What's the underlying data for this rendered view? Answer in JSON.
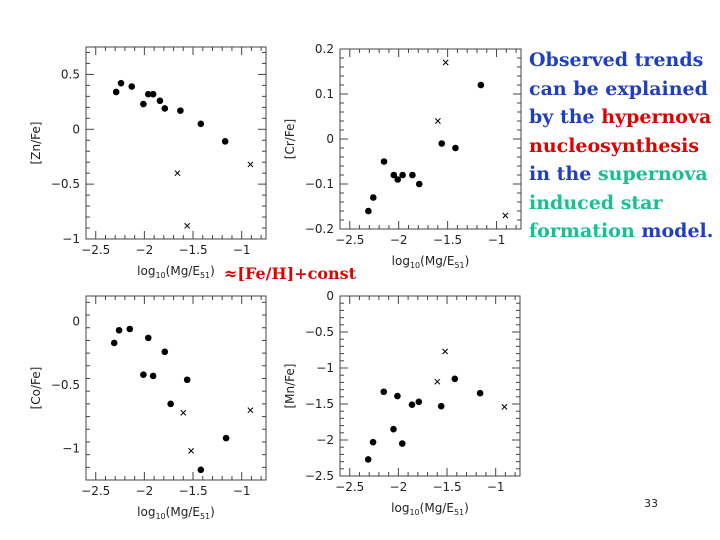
{
  "colors": {
    "blue": "#1f3fc0",
    "red": "#e00000",
    "teal": "#1abf8f",
    "ink": "#000000"
  },
  "side_text": {
    "lines": [
      [
        {
          "text": "Observed trends",
          "color": "blue"
        }
      ],
      [
        {
          "text": "can be explained",
          "color": "blue"
        }
      ],
      [
        {
          "text": "by the ",
          "color": "blue"
        },
        {
          "text": "hypernova",
          "color": "red"
        }
      ],
      [
        {
          "text": "nucleosynthesis",
          "color": "red"
        }
      ],
      [
        {
          "text": "in the ",
          "color": "blue"
        },
        {
          "text": "supernova",
          "color": "teal"
        }
      ],
      [
        {
          "text": "induced star",
          "color": "teal"
        }
      ],
      [
        {
          "text": "formation",
          "color": "teal"
        },
        {
          "text": " model.",
          "color": "blue"
        }
      ]
    ]
  },
  "note": "≈[Fe/H]+const",
  "page_number": "33",
  "chart_data": [
    {
      "type": "scatter",
      "ylabel": "[Zn/Fe]",
      "xlabel_main": "log",
      "xlabel_sub": "10",
      "xlabel_paren": "(Mg/E",
      "xlabel_paren_sub": "51",
      "xlabel_close": ")",
      "xlim": [
        -2.6,
        -0.75
      ],
      "ylim": [
        -1,
        0.75
      ],
      "xticks": [
        -2.5,
        -2,
        -1.5,
        -1
      ],
      "xtick_labels": [
        "−2.5",
        "−2",
        "−1.5",
        "−1"
      ],
      "yticks": [
        -1,
        -0.5,
        0,
        0.5
      ],
      "ytick_labels": [
        "−1",
        "−0.5",
        "0",
        "0.5"
      ],
      "series": [
        {
          "marker": "dot",
          "points": [
            [
              -2.29,
              0.34
            ],
            [
              -2.24,
              0.42
            ],
            [
              -2.13,
              0.39
            ],
            [
              -2.01,
              0.23
            ],
            [
              -1.96,
              0.32
            ],
            [
              -1.91,
              0.32
            ],
            [
              -1.84,
              0.26
            ],
            [
              -1.79,
              0.19
            ],
            [
              -1.63,
              0.17
            ],
            [
              -1.42,
              0.05
            ],
            [
              -1.17,
              -0.11
            ]
          ]
        },
        {
          "marker": "cross",
          "points": [
            [
              -1.66,
              -0.4
            ],
            [
              -1.56,
              -0.88
            ],
            [
              -0.91,
              -0.32
            ]
          ]
        }
      ]
    },
    {
      "type": "scatter",
      "ylabel": "[Cr/Fe]",
      "xlabel_main": "log",
      "xlabel_sub": "10",
      "xlabel_paren": "(Mg/E",
      "xlabel_paren_sub": "51",
      "xlabel_close": ")",
      "xlim": [
        -2.6,
        -0.75
      ],
      "ylim": [
        -0.2,
        0.2
      ],
      "xticks": [
        -2.5,
        -2,
        -1.5,
        -1
      ],
      "xtick_labels": [
        "−2.5",
        "−2",
        "−1.5",
        "−1"
      ],
      "yticks": [
        -0.2,
        -0.1,
        0,
        0.1,
        0.2
      ],
      "ytick_labels": [
        "−0.2",
        "−0.1",
        "0",
        "0.1",
        "0.2"
      ],
      "series": [
        {
          "marker": "dot",
          "points": [
            [
              -2.31,
              -0.16
            ],
            [
              -2.26,
              -0.13
            ],
            [
              -2.15,
              -0.05
            ],
            [
              -2.05,
              -0.08
            ],
            [
              -2.01,
              -0.09
            ],
            [
              -1.96,
              -0.08
            ],
            [
              -1.86,
              -0.08
            ],
            [
              -1.79,
              -0.1
            ],
            [
              -1.56,
              -0.01
            ],
            [
              -1.42,
              -0.02
            ],
            [
              -1.16,
              0.12
            ]
          ]
        },
        {
          "marker": "cross",
          "points": [
            [
              -1.6,
              0.04
            ],
            [
              -1.52,
              0.17
            ],
            [
              -0.91,
              -0.17
            ]
          ]
        }
      ]
    },
    {
      "type": "scatter",
      "ylabel": "[Co/Fe]",
      "xlabel_main": "log",
      "xlabel_sub": "10",
      "xlabel_paren": "(Mg/E",
      "xlabel_paren_sub": "51",
      "xlabel_close": ")",
      "xlim": [
        -2.6,
        -0.75
      ],
      "ylim": [
        -1.25,
        0.2
      ],
      "xticks": [
        -2.5,
        -2,
        -1.5,
        -1
      ],
      "xtick_labels": [
        "−2.5",
        "−2",
        "−1.5",
        "−1"
      ],
      "yticks": [
        -1,
        -0.5,
        0
      ],
      "ytick_labels": [
        "−1",
        "−0.5",
        "0"
      ],
      "series": [
        {
          "marker": "dot",
          "points": [
            [
              -2.31,
              -0.17
            ],
            [
              -2.26,
              -0.07
            ],
            [
              -2.15,
              -0.06
            ],
            [
              -2.01,
              -0.42
            ],
            [
              -1.96,
              -0.13
            ],
            [
              -1.91,
              -0.43
            ],
            [
              -1.79,
              -0.24
            ],
            [
              -1.73,
              -0.65
            ],
            [
              -1.56,
              -0.46
            ],
            [
              -1.42,
              -1.17
            ],
            [
              -1.16,
              -0.92
            ]
          ]
        },
        {
          "marker": "cross",
          "points": [
            [
              -1.6,
              -0.72
            ],
            [
              -1.52,
              -1.02
            ],
            [
              -0.91,
              -0.7
            ]
          ]
        }
      ]
    },
    {
      "type": "scatter",
      "ylabel": "[Mn/Fe]",
      "xlabel_main": "log",
      "xlabel_sub": "10",
      "xlabel_paren": "(Mg/E",
      "xlabel_paren_sub": "51",
      "xlabel_close": ")",
      "xlim": [
        -2.6,
        -0.75
      ],
      "ylim": [
        -2.5,
        0
      ],
      "xticks": [
        -2.5,
        -2,
        -1.5,
        -1
      ],
      "xtick_labels": [
        "−2.5",
        "−2",
        "−1.5",
        "−1"
      ],
      "yticks": [
        -2.5,
        -2,
        -1.5,
        -1,
        -0.5,
        0
      ],
      "ytick_labels": [
        "−2.5",
        "−2",
        "−1.5",
        "−1",
        "−0.5",
        "0"
      ],
      "series": [
        {
          "marker": "dot",
          "points": [
            [
              -2.31,
              -2.27
            ],
            [
              -2.26,
              -2.03
            ],
            [
              -2.15,
              -1.33
            ],
            [
              -2.05,
              -1.85
            ],
            [
              -2.01,
              -1.39
            ],
            [
              -1.96,
              -2.05
            ],
            [
              -1.86,
              -1.51
            ],
            [
              -1.79,
              -1.47
            ],
            [
              -1.56,
              -1.53
            ],
            [
              -1.42,
              -1.15
            ],
            [
              -1.16,
              -1.35
            ]
          ]
        },
        {
          "marker": "cross",
          "points": [
            [
              -1.6,
              -1.19
            ],
            [
              -1.52,
              -0.77
            ],
            [
              -0.91,
              -1.54
            ]
          ]
        }
      ]
    }
  ]
}
